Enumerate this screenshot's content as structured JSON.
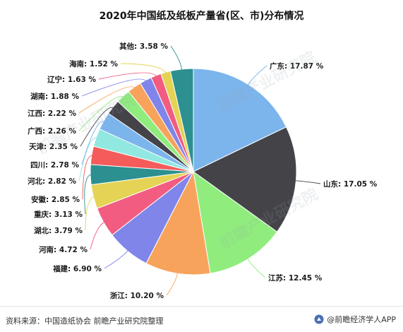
{
  "page": {
    "title": "2020年中国纸及纸板产量省(区、市)分布情况",
    "source": "资料来源：中国造纸协会 前瞻产业研究院整理",
    "brand": "@前瞻经济学人APP",
    "watermark": "前瞻产业研究院"
  },
  "chart_data": {
    "type": "pie",
    "title": "2020年中国纸及纸板产量省(区、市)分布情况",
    "unit": "%",
    "start": "12 o'clock, clockwise",
    "slices": [
      {
        "name": "广东",
        "value": 17.87,
        "label": "广东: 17.87 %",
        "color": "#7cb5ec"
      },
      {
        "name": "山东",
        "value": 17.05,
        "label": "山东: 17.05 %",
        "color": "#434348"
      },
      {
        "name": "江苏",
        "value": 12.45,
        "label": "江苏: 12.45 %",
        "color": "#90ed7d"
      },
      {
        "name": "浙江",
        "value": 10.2,
        "label": "浙江: 10.20 %",
        "color": "#f7a35c"
      },
      {
        "name": "福建",
        "value": 6.9,
        "label": "福建: 6.90 %",
        "color": "#8085e9"
      },
      {
        "name": "河南",
        "value": 4.72,
        "label": "河南: 4.72 %",
        "color": "#f15c80"
      },
      {
        "name": "湖北",
        "value": 3.79,
        "label": "湖北: 3.79 %",
        "color": "#e4d354"
      },
      {
        "name": "重庆",
        "value": 3.13,
        "label": "重庆: 3.13 %",
        "color": "#2b908f"
      },
      {
        "name": "安徽",
        "value": 2.85,
        "label": "安徽: 2.85 %",
        "color": "#f45b5b"
      },
      {
        "name": "河北",
        "value": 2.82,
        "label": "河北: 2.82 %",
        "color": "#91e8e1"
      },
      {
        "name": "四川",
        "value": 2.78,
        "label": "四川: 2.78 %",
        "color": "#7cb5ec"
      },
      {
        "name": "天津",
        "value": 2.35,
        "label": "天津: 2.35 %",
        "color": "#434348"
      },
      {
        "name": "广西",
        "value": 2.26,
        "label": "广西: 2.26 %",
        "color": "#90ed7d"
      },
      {
        "name": "江西",
        "value": 2.22,
        "label": "江西: 2.22 %",
        "color": "#f7a35c"
      },
      {
        "name": "湖南",
        "value": 1.88,
        "label": "湖南: 1.88 %",
        "color": "#8085e9"
      },
      {
        "name": "辽宁",
        "value": 1.63,
        "label": "辽宁: 1.63 %",
        "color": "#f15c80"
      },
      {
        "name": "海南",
        "value": 1.52,
        "label": "海南: 1.52 %",
        "color": "#e4d354"
      },
      {
        "name": "其他",
        "value": 3.58,
        "label": "其他: 3.58 %",
        "color": "#2b908f"
      }
    ]
  }
}
